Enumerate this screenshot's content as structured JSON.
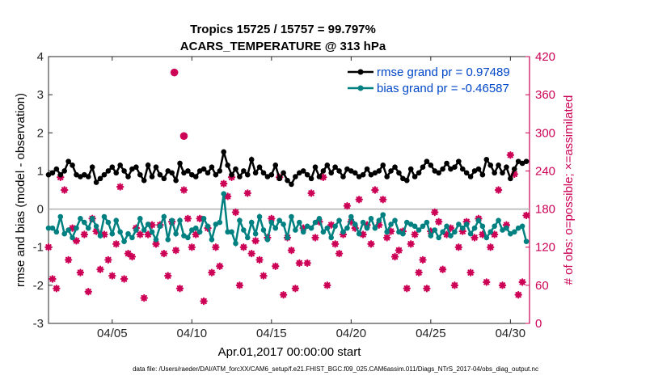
{
  "chart_data": {
    "type": "line",
    "title_line1": "Tropics 15725 / 15757 = 99.797%",
    "title_line2": "ACARS_TEMPERATURE @ 313 hPa",
    "xlabel": "Apr.01,2017 00:00:00 start",
    "ylabel_left": "rmse and bias (model - observation)",
    "ylabel_right": "# of obs: o=possible; ×=assimilated",
    "footnote": "data file: /Users/raeder/DAI/ATM_forcXX/CAM6_setup/f.e21.FHIST_BGC.f09_025.CAM6assim.011/Diags_NTrS_2017-04/obs_diag_output.nc",
    "xlim": [
      1.0,
      31.2
    ],
    "ylim_left": [
      -3,
      4
    ],
    "ylim_right": [
      0,
      420
    ],
    "x_ticks": [
      5,
      10,
      15,
      20,
      25,
      30
    ],
    "x_tick_labels": [
      "04/05",
      "04/10",
      "04/15",
      "04/20",
      "04/25",
      "04/30"
    ],
    "y_ticks_left": [
      -3,
      -2,
      -1,
      0,
      1,
      2,
      3,
      4
    ],
    "y_tick_labels_left": [
      "-3",
      "-2",
      "-1",
      "0",
      "1",
      "2",
      "3",
      "4"
    ],
    "y_ticks_right": [
      0,
      60,
      120,
      180,
      240,
      300,
      360,
      420
    ],
    "y_tick_labels_right": [
      "0",
      "60",
      "120",
      "180",
      "240",
      "300",
      "360",
      "420"
    ],
    "colors": {
      "rmse": "#000000",
      "bias": "#008080",
      "obs": "#cc0055",
      "zero_line": "#b0b0b0",
      "legend_text": "#0047c8"
    },
    "legend": [
      {
        "name": "rmse grand pr = 0.97489",
        "series": "rmse"
      },
      {
        "name": "bias grand pr = -0.46587",
        "series": "bias"
      }
    ],
    "x": [
      1.0,
      1.25,
      1.5,
      1.75,
      2.0,
      2.25,
      2.5,
      2.75,
      3.0,
      3.25,
      3.5,
      3.75,
      4.0,
      4.25,
      4.5,
      4.75,
      5.0,
      5.25,
      5.5,
      5.75,
      6.0,
      6.25,
      6.5,
      6.75,
      7.0,
      7.25,
      7.5,
      7.75,
      8.0,
      8.25,
      8.5,
      8.75,
      9.0,
      9.25,
      9.5,
      9.75,
      10.0,
      10.25,
      10.5,
      10.75,
      11.0,
      11.25,
      11.5,
      11.75,
      12.0,
      12.25,
      12.5,
      12.75,
      13.0,
      13.25,
      13.5,
      13.75,
      14.0,
      14.25,
      14.5,
      14.75,
      15.0,
      15.25,
      15.5,
      15.75,
      16.0,
      16.25,
      16.5,
      16.75,
      17.0,
      17.25,
      17.5,
      17.75,
      18.0,
      18.25,
      18.5,
      18.75,
      19.0,
      19.25,
      19.5,
      19.75,
      20.0,
      20.25,
      20.5,
      20.75,
      21.0,
      21.25,
      21.5,
      21.75,
      22.0,
      22.25,
      22.5,
      22.75,
      23.0,
      23.25,
      23.5,
      23.75,
      24.0,
      24.25,
      24.5,
      24.75,
      25.0,
      25.25,
      25.5,
      25.75,
      26.0,
      26.25,
      26.5,
      26.75,
      27.0,
      27.25,
      27.5,
      27.75,
      28.0,
      28.25,
      28.5,
      28.75,
      29.0,
      29.25,
      29.5,
      29.75,
      30.0,
      30.25,
      30.5,
      30.75,
      31.0
    ],
    "series": [
      {
        "name": "rmse",
        "values": [
          0.9,
          0.95,
          1.05,
          0.9,
          1.0,
          1.25,
          1.15,
          0.9,
          0.85,
          0.9,
          0.85,
          1.1,
          0.7,
          0.8,
          0.9,
          1.0,
          1.1,
          0.95,
          1.15,
          1.0,
          0.85,
          1.05,
          1.1,
          0.9,
          0.75,
          1.15,
          0.85,
          1.1,
          0.9,
          0.8,
          1.0,
          0.95,
          0.75,
          1.2,
          0.95,
          1.0,
          0.9,
          0.85,
          1.0,
          1.05,
          0.95,
          1.1,
          0.9,
          1.0,
          1.5,
          1.15,
          0.9,
          1.05,
          0.85,
          1.0,
          0.9,
          1.3,
          0.95,
          1.1,
          0.95,
          0.85,
          0.9,
          1.15,
          0.8,
          0.95,
          0.75,
          0.65,
          0.85,
          0.95,
          1.0,
          0.9,
          0.8,
          1.1,
          0.85,
          1.0,
          1.15,
          0.95,
          1.1,
          1.0,
          0.85,
          1.05,
          1.0,
          0.95,
          0.85,
          0.9,
          1.05,
          0.9,
          0.95,
          1.0,
          1.15,
          0.85,
          1.0,
          1.1,
          0.95,
          0.8,
          0.75,
          1.05,
          0.85,
          0.95,
          1.1,
          1.25,
          1.15,
          1.0,
          0.95,
          1.05,
          1.2,
          1.05,
          1.1,
          1.25,
          1.05,
          0.95,
          0.85,
          1.0,
          1.05,
          0.9,
          1.3,
          1.15,
          0.95,
          1.15,
          0.95,
          1.1,
          0.8,
          1.05,
          1.25,
          1.2,
          1.25
        ]
      },
      {
        "name": "bias",
        "values": [
          -0.5,
          -0.5,
          -0.6,
          -0.2,
          -0.65,
          -0.55,
          -0.75,
          -0.5,
          -0.25,
          -0.35,
          -0.5,
          -0.25,
          -0.45,
          -0.7,
          -0.2,
          -0.35,
          -0.65,
          -0.3,
          -0.6,
          -0.85,
          -0.65,
          -0.75,
          -0.55,
          -0.25,
          -0.55,
          -0.4,
          -0.6,
          -0.8,
          -0.45,
          -0.2,
          -0.8,
          -0.3,
          -0.65,
          -0.3,
          -0.7,
          -0.75,
          -0.55,
          -0.5,
          -0.6,
          -0.25,
          -0.45,
          -0.8,
          -0.4,
          -0.35,
          0.4,
          -0.6,
          -0.6,
          -0.9,
          -0.3,
          -0.55,
          -0.75,
          -0.35,
          -0.65,
          -0.2,
          -0.55,
          -0.8,
          -0.35,
          -0.5,
          -0.3,
          -0.4,
          -0.75,
          -0.2,
          -0.55,
          -0.35,
          -0.6,
          -0.45,
          -0.5,
          -0.35,
          -0.25,
          -0.6,
          -0.5,
          -0.75,
          -0.45,
          -0.3,
          -0.6,
          -0.5,
          -0.2,
          -0.4,
          -0.65,
          -0.35,
          -0.5,
          -0.25,
          -0.5,
          -0.3,
          -0.15,
          -0.6,
          -0.4,
          -0.3,
          -0.6,
          -0.65,
          -0.35,
          -0.4,
          -0.45,
          -0.55,
          -0.45,
          -0.35,
          -0.7,
          -0.55,
          -0.75,
          -0.6,
          -0.45,
          -0.7,
          -0.6,
          -0.4,
          -0.5,
          -0.4,
          -0.65,
          -0.5,
          -0.3,
          -0.45,
          -0.75,
          -0.6,
          -0.45,
          -0.3,
          -0.55,
          -0.5,
          -0.65,
          -0.6,
          -0.5,
          -0.45,
          -0.85
        ]
      },
      {
        "name": "obs_assimilated",
        "values": [
          120,
          70,
          55,
          230,
          210,
          100,
          150,
          130,
          80,
          140,
          50,
          165,
          145,
          85,
          140,
          100,
          75,
          125,
          215,
          70,
          110,
          105,
          150,
          140,
          40,
          140,
          155,
          125,
          155,
          110,
          75,
          160,
          115,
          55,
          210,
          165,
          120,
          140,
          165,
          35,
          150,
          80,
          120,
          90,
          220,
          200,
          230,
          175,
          60,
          120,
          205,
          110,
          130,
          100,
          75,
          135,
          165,
          90,
          230,
          45,
          135,
          115,
          55,
          95,
          150,
          95,
          205,
          135,
          160,
          230,
          60,
          155,
          125,
          110,
          140,
          185,
          160,
          150,
          195,
          140,
          155,
          125,
          210,
          155,
          195,
          135,
          145,
          105,
          115,
          145,
          55,
          125,
          140,
          80,
          100,
          55,
          145,
          175,
          160,
          85,
          140,
          150,
          60,
          120,
          145,
          160,
          80,
          135,
          165,
          140,
          65,
          120,
          140,
          210,
          60,
          155,
          265,
          235,
          45,
          65,
          170
        ]
      }
    ],
    "possible_outliers": [
      {
        "x": 8.9,
        "value": 395
      },
      {
        "x": 9.5,
        "value": 295
      }
    ]
  }
}
